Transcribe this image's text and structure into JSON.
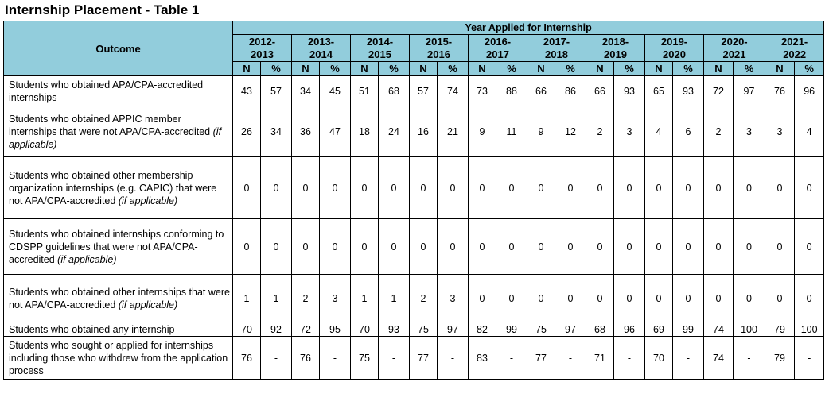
{
  "title": "Internship Placement - Table 1",
  "header": {
    "outcome": "Outcome",
    "group": "Year Applied for Internship",
    "years": [
      {
        "top": "2012-",
        "bottom": "2013"
      },
      {
        "top": "2013-",
        "bottom": "2014"
      },
      {
        "top": "2014-",
        "bottom": "2015"
      },
      {
        "top": "2015-",
        "bottom": "2016"
      },
      {
        "top": "2016-",
        "bottom": "2017"
      },
      {
        "top": "2017-",
        "bottom": "2018"
      },
      {
        "top": "2018-",
        "bottom": "2019"
      },
      {
        "top": "2019-",
        "bottom": "2020"
      },
      {
        "top": "2020-",
        "bottom": "2021"
      },
      {
        "top": "2021-",
        "bottom": "2022"
      }
    ],
    "n_label": "N",
    "pct_label": "%"
  },
  "rows": [
    {
      "label": "Students who obtained APA/CPA-accredited internships",
      "qualifier": "",
      "values": [
        "43",
        "57",
        "34",
        "45",
        "51",
        "68",
        "57",
        "74",
        "73",
        "88",
        "66",
        "86",
        "66",
        "93",
        "65",
        "93",
        "72",
        "97",
        "76",
        "96"
      ]
    },
    {
      "label": "Students who obtained APPIC member internships that were not APA/CPA-accredited",
      "qualifier": "(if applicable)",
      "values": [
        "26",
        "34",
        "36",
        "47",
        "18",
        "24",
        "16",
        "21",
        "9",
        "11",
        "9",
        "12",
        "2",
        "3",
        "4",
        "6",
        "2",
        "3",
        "3",
        "4"
      ]
    },
    {
      "label": "Students who obtained other membership organization internships (e.g. CAPIC) that were not APA/CPA-accredited",
      "qualifier": "(if applicable)",
      "values": [
        "0",
        "0",
        "0",
        "0",
        "0",
        "0",
        "0",
        "0",
        "0",
        "0",
        "0",
        "0",
        "0",
        "0",
        "0",
        "0",
        "0",
        "0",
        "0",
        "0"
      ]
    },
    {
      "label": "Students who obtained  internships conforming to CDSPP guidelines that were not APA/CPA-accredited",
      "qualifier": "(if applicable)",
      "values": [
        "0",
        "0",
        "0",
        "0",
        "0",
        "0",
        "0",
        "0",
        "0",
        "0",
        "0",
        "0",
        "0",
        "0",
        "0",
        "0",
        "0",
        "0",
        "0",
        "0"
      ]
    },
    {
      "label": "Students who obtained other internships that were not APA/CPA-accredited",
      "qualifier": "(if applicable)",
      "values": [
        "1",
        "1",
        "2",
        "3",
        "1",
        "1",
        "2",
        "3",
        "0",
        "0",
        "0",
        "0",
        "0",
        "0",
        "0",
        "0",
        "0",
        "0",
        "0",
        "0"
      ]
    },
    {
      "label": "Students who obtained any internship",
      "qualifier": "",
      "values": [
        "70",
        "92",
        "72",
        "95",
        "70",
        "93",
        "75",
        "97",
        "82",
        "99",
        "75",
        "97",
        "68",
        "96",
        "69",
        "99",
        "74",
        "100",
        "79",
        "100"
      ]
    },
    {
      "label": "Students who sought or applied for internships including those who withdrew from the application process",
      "qualifier": "",
      "values": [
        "76",
        "-",
        "76",
        "-",
        "75",
        "-",
        "77",
        "-",
        "83",
        "-",
        "77",
        "-",
        "71",
        "-",
        "70",
        "-",
        "74",
        "-",
        "79",
        "-"
      ]
    }
  ]
}
